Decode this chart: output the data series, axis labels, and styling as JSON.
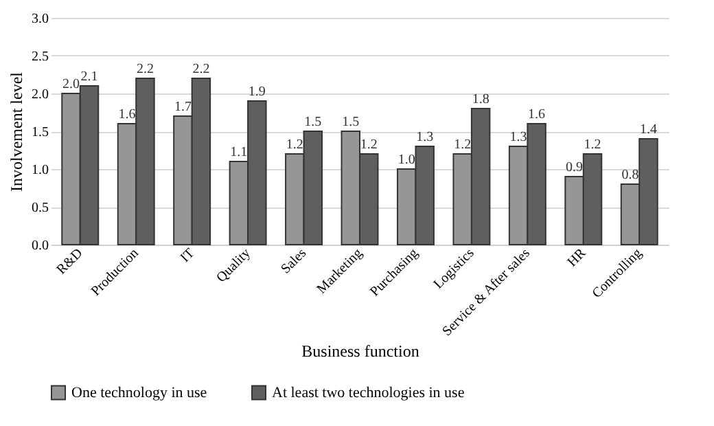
{
  "chart_data": {
    "type": "bar",
    "xlabel": "Business function",
    "ylabel": "Involvement level",
    "categories": [
      "R&D",
      "Production",
      "IT",
      "Quality",
      "Sales",
      "Marketing",
      "Purchasing",
      "Logistics",
      "Service & After sales",
      "HR",
      "Controlling"
    ],
    "series": [
      {
        "name": "One technology in use",
        "color": "#969696",
        "values": [
          2.0,
          1.6,
          1.7,
          1.1,
          1.2,
          1.5,
          1.0,
          1.2,
          1.3,
          0.9,
          0.8
        ],
        "value_labels": [
          "2.0",
          "1.6",
          "1.7",
          "1.1",
          "1.2",
          "1.5",
          "1.0",
          "1.2",
          "1.3",
          "0.9",
          "0.8"
        ]
      },
      {
        "name": "At least two technologies in use",
        "color": "#5f5f5f",
        "values": [
          2.1,
          2.2,
          2.2,
          1.9,
          1.5,
          1.2,
          1.3,
          1.8,
          1.6,
          1.2,
          1.4
        ],
        "value_labels": [
          "2.1",
          "2.2",
          "2.2",
          "1.9",
          "1.5",
          "1.2",
          "1.3",
          "1.8",
          "1.6",
          "1.2",
          "1.4"
        ]
      }
    ],
    "ylim": [
      0,
      3
    ],
    "yticks": [
      {
        "value": 0,
        "label": "0.0"
      },
      {
        "value": 0.5,
        "label": "0.5"
      },
      {
        "value": 1,
        "label": "1.0"
      },
      {
        "value": 1.5,
        "label": "1.5"
      },
      {
        "value": 2,
        "label": "2.0"
      },
      {
        "value": 2.5,
        "label": "2.5"
      },
      {
        "value": 3,
        "label": "3.0"
      }
    ],
    "grid": "y",
    "legend": "bottom"
  }
}
